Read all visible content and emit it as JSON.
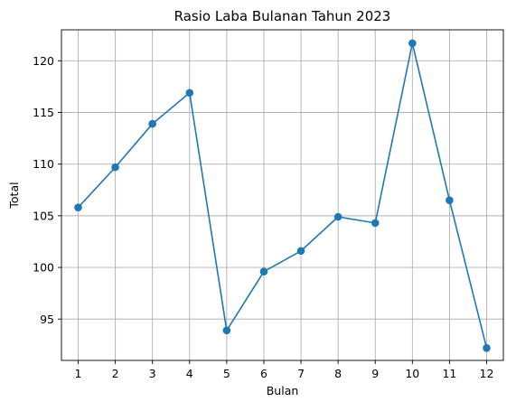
{
  "chart_data": {
    "type": "line",
    "title": "Rasio Laba Bulanan Tahun 2023",
    "xlabel": "Bulan",
    "ylabel": "Total",
    "x": [
      1,
      2,
      3,
      4,
      5,
      6,
      7,
      8,
      9,
      10,
      11,
      12
    ],
    "x_tick_labels": [
      "1",
      "2",
      "3",
      "4",
      "5",
      "6",
      "7",
      "8",
      "9",
      "10",
      "11",
      "12"
    ],
    "y_ticks": [
      95,
      100,
      105,
      110,
      115,
      120
    ],
    "y_tick_labels": [
      "95",
      "100",
      "105",
      "110",
      "115",
      "120"
    ],
    "xlim": [
      0.55,
      12.45
    ],
    "ylim": [
      91.0,
      123.0
    ],
    "grid": true,
    "marker": "circle",
    "series": [
      {
        "values": [
          105.8,
          109.7,
          113.9,
          116.9,
          93.9,
          99.6,
          101.6,
          104.9,
          104.3,
          121.7,
          106.5,
          92.2
        ],
        "color": "#1f77b4"
      }
    ]
  }
}
